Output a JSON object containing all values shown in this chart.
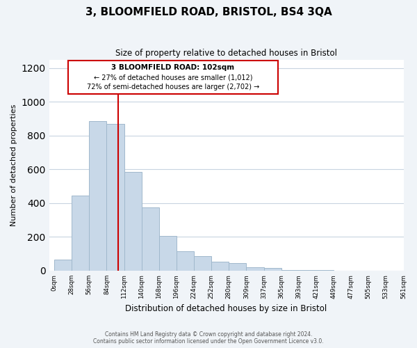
{
  "title": "3, BLOOMFIELD ROAD, BRISTOL, BS4 3QA",
  "subtitle": "Size of property relative to detached houses in Bristol",
  "xlabel": "Distribution of detached houses by size in Bristol",
  "ylabel": "Number of detached properties",
  "bar_color": "#c8d8e8",
  "bar_edge_color": "#a0b8cc",
  "tick_labels": [
    "0sqm",
    "28sqm",
    "56sqm",
    "84sqm",
    "112sqm",
    "140sqm",
    "168sqm",
    "196sqm",
    "224sqm",
    "252sqm",
    "280sqm",
    "309sqm",
    "337sqm",
    "365sqm",
    "393sqm",
    "421sqm",
    "449sqm",
    "477sqm",
    "505sqm",
    "533sqm",
    "561sqm"
  ],
  "bar_heights": [
    65,
    445,
    885,
    870,
    585,
    375,
    205,
    115,
    85,
    55,
    45,
    20,
    15,
    5,
    3,
    2,
    1,
    1,
    0,
    0
  ],
  "ylim": [
    0,
    1250
  ],
  "yticks": [
    0,
    200,
    400,
    600,
    800,
    1000,
    1200
  ],
  "marker_color": "#cc0000",
  "annotation_title": "3 BLOOMFIELD ROAD: 102sqm",
  "annotation_line1": "← 27% of detached houses are smaller (1,012)",
  "annotation_line2": "72% of semi-detached houses are larger (2,702) →",
  "annotation_box_color": "#ffffff",
  "annotation_box_edge": "#cc0000",
  "footer_line1": "Contains HM Land Registry data © Crown copyright and database right 2024.",
  "footer_line2": "Contains public sector information licensed under the Open Government Licence v3.0.",
  "background_color": "#f0f4f8",
  "plot_bg_color": "#ffffff",
  "grid_color": "#c8d4e0"
}
